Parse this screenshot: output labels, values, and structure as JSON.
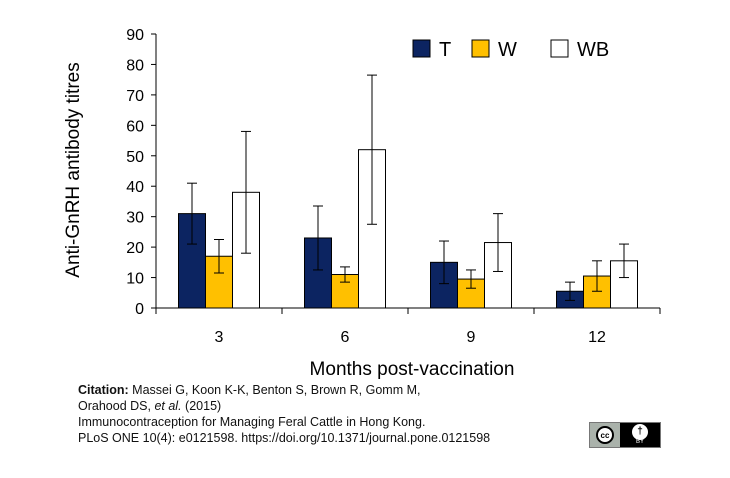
{
  "chart_data": {
    "type": "bar",
    "title": "",
    "categories": [
      "3",
      "6",
      "9",
      "12"
    ],
    "series": [
      {
        "name": "T",
        "color": "#0c2461",
        "values": [
          31,
          23,
          15,
          5.5
        ],
        "errors": [
          10,
          10.5,
          7,
          3
        ]
      },
      {
        "name": "W",
        "color": "#ffc000",
        "values": [
          17,
          11,
          9.5,
          10.5
        ],
        "errors": [
          5.5,
          2.5,
          3,
          5
        ]
      },
      {
        "name": "WB",
        "color": "#ffffff",
        "values": [
          38,
          52,
          21.5,
          15.5
        ],
        "errors": [
          20,
          24.5,
          9.5,
          5.5
        ]
      }
    ],
    "xlabel": "Months post-vaccination",
    "ylabel": "Anti-GnRH antibody titres",
    "ylim": [
      0,
      90
    ],
    "yticks": [
      0,
      10,
      20,
      30,
      40,
      50,
      60,
      70,
      80,
      90
    ],
    "legend_position": "top-right"
  },
  "citation": {
    "label": "Citation:",
    "line1": "Massei G, Koon K-K, Benton S, Brown R, Gomm M,",
    "line2_prefix": "Orahood DS,",
    "et_al": "et al.",
    "year": "(2015)",
    "line3": "Immunocontraception for Managing Feral Cattle in Hong Kong.",
    "line4": "PLoS ONE 10(4): e0121598. https://doi.org/10.1371/journal.pone.0121598"
  },
  "license": {
    "cc_text": "cc",
    "by_text": "BY",
    "person_glyph": "†"
  }
}
